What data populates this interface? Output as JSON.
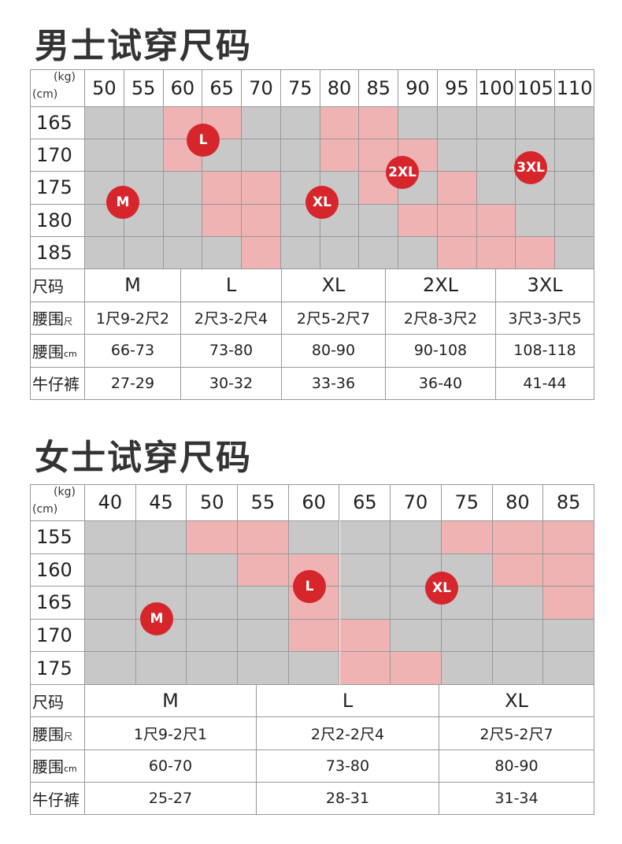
{
  "sections": [
    {
      "title": "男士试穿尺码",
      "unit_weight": "(kg)",
      "unit_height": "(cm)",
      "weights": [
        50,
        55,
        60,
        65,
        70,
        75,
        80,
        85,
        90,
        95,
        100,
        105,
        110
      ],
      "heights": [
        165,
        170,
        175,
        180,
        185
      ],
      "badges": [
        "M",
        "L",
        "XL",
        "2XL",
        "3XL"
      ],
      "table": {
        "rows": [
          {
            "label": "尺码",
            "cells": [
              "M",
              "L",
              "XL",
              "2XL",
              "3XL"
            ]
          },
          {
            "label": "腰围",
            "unit": "尺",
            "cells": [
              "1尺9-2尺2",
              "2尺3-2尺4",
              "2尺5-2尺7",
              "2尺8-3尺2",
              "3尺3-3尺5"
            ]
          },
          {
            "label": "腰围",
            "unit": "cm",
            "cells": [
              "66-73",
              "73-80",
              "80-90",
              "90-108",
              "108-118"
            ]
          },
          {
            "label": "牛仔裤",
            "cells": [
              "27-29",
              "30-32",
              "33-36",
              "36-40",
              "41-44"
            ]
          }
        ]
      }
    },
    {
      "title": "女士试穿尺码",
      "unit_weight": "(kg)",
      "unit_height": "(cm)",
      "weights": [
        40,
        45,
        50,
        55,
        60,
        65,
        70,
        75,
        80,
        85
      ],
      "heights": [
        155,
        160,
        165,
        170,
        175
      ],
      "badges": [
        "M",
        "L",
        "XL"
      ],
      "table": {
        "rows": [
          {
            "label": "尺码",
            "cells": [
              "M",
              "L",
              "XL"
            ]
          },
          {
            "label": "腰围",
            "unit": "尺",
            "cells": [
              "1尺9-2尺1",
              "2尺2-2尺4",
              "2尺5-2尺7"
            ]
          },
          {
            "label": "腰围",
            "unit": "cm",
            "cells": [
              "60-70",
              "73-80",
              "80-90"
            ]
          },
          {
            "label": "牛仔裤",
            "cells": [
              "25-27",
              "28-31",
              "31-34"
            ]
          }
        ]
      }
    }
  ]
}
